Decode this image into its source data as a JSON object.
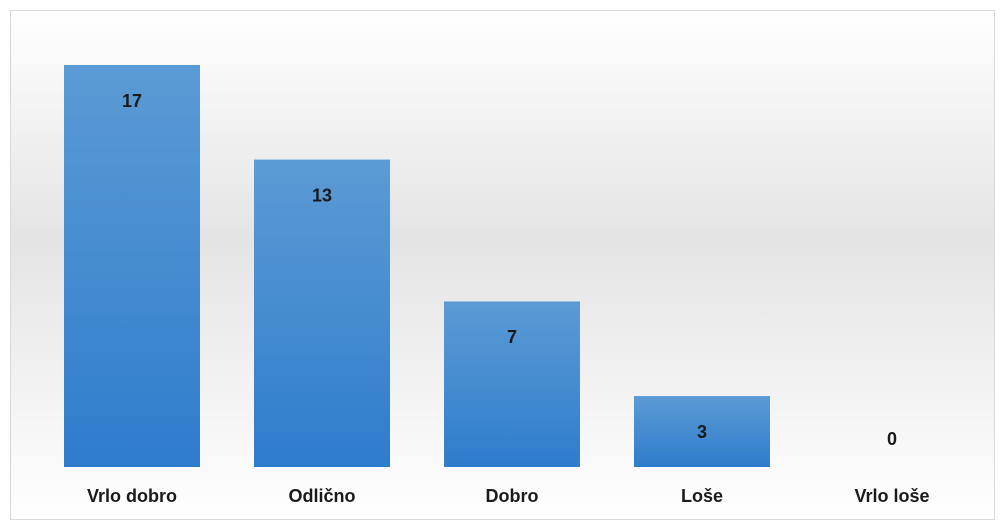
{
  "chart_data": {
    "type": "bar",
    "categories": [
      "Vrlo dobro",
      "Odlično",
      "Dobro",
      "Loše",
      "Vrlo loše"
    ],
    "values": [
      17,
      13,
      7,
      3,
      0
    ],
    "color": "#4a8fd6"
  }
}
